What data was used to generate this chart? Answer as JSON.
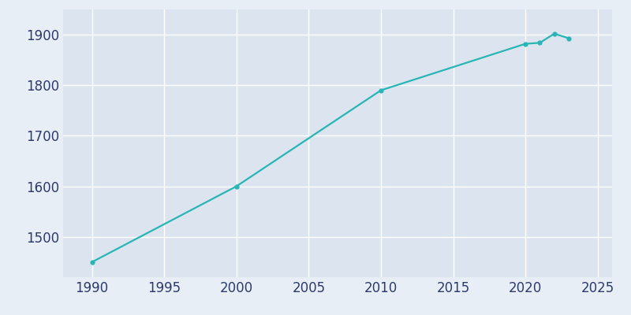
{
  "years": [
    1990,
    2000,
    2010,
    2020,
    2021,
    2022,
    2023
  ],
  "population": [
    1450,
    1600,
    1790,
    1882,
    1884,
    1902,
    1893
  ],
  "line_color": "#2ab5b5",
  "marker": "o",
  "marker_size": 3.5,
  "linewidth": 1.6,
  "bg_color": "#e8eef5",
  "plot_bg_color": "#dce5ef",
  "xlim": [
    1988,
    2026
  ],
  "ylim": [
    1420,
    1950
  ],
  "xticks": [
    1990,
    1995,
    2000,
    2005,
    2010,
    2015,
    2020,
    2025
  ],
  "yticks": [
    1500,
    1600,
    1700,
    1800,
    1900
  ],
  "grid_color": "#ffffff",
  "tick_color": "#2d3a6b",
  "tick_fontsize": 12
}
